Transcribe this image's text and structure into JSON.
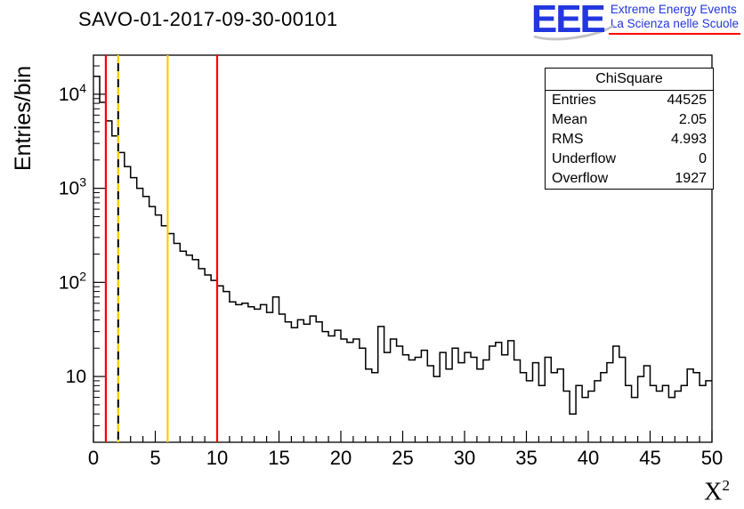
{
  "header": {
    "title": "SAVO-01-2017-09-30-00101"
  },
  "logo": {
    "acronym": "EEE",
    "line1": "Extreme Energy Events",
    "line2": "La Scienza nelle Scuole",
    "color": "#2236e0",
    "underline_color": "#ff0000"
  },
  "stats": {
    "title": "ChiSquare",
    "rows": [
      {
        "label": "Entries",
        "value": "44525"
      },
      {
        "label": "Mean",
        "value": "2.05"
      },
      {
        "label": "RMS",
        "value": "4.993"
      },
      {
        "label": "Underflow",
        "value": "0"
      },
      {
        "label": "Overflow",
        "value": "1927"
      }
    ]
  },
  "chart_data": {
    "type": "bar",
    "subtype": "histogram-step-logy",
    "title": "SAVO-01-2017-09-30-00101",
    "xlabel": "X",
    "xlabel_sup": "2",
    "ylabel": "Entries/bin",
    "xlim": [
      0,
      50
    ],
    "ylim": [
      2,
      26000
    ],
    "y_scale": "log",
    "grid": false,
    "legend": "none",
    "bin_start": 0,
    "bin_width": 0.5,
    "x_ticks": [
      0,
      5,
      10,
      15,
      20,
      25,
      30,
      35,
      40,
      45,
      50
    ],
    "y_tick_exponents": [
      1,
      2,
      3,
      4
    ],
    "line_color": "#000000",
    "values": [
      15500,
      8200,
      5200,
      3600,
      2400,
      1700,
      1300,
      1000,
      820,
      640,
      520,
      400,
      330,
      260,
      215,
      195,
      175,
      140,
      120,
      105,
      92,
      80,
      62,
      58,
      60,
      55,
      52,
      58,
      48,
      70,
      46,
      38,
      33,
      40,
      36,
      44,
      38,
      30,
      27,
      31,
      25,
      23,
      25,
      20,
      12,
      11,
      34,
      18,
      25,
      21,
      17,
      15,
      16,
      19,
      13,
      10,
      18,
      12,
      20,
      14,
      18,
      16,
      12,
      15,
      21,
      23,
      17,
      24,
      15,
      11,
      9,
      14,
      8,
      16,
      11,
      12,
      7,
      4,
      8,
      6,
      7,
      9,
      11,
      14,
      21,
      16,
      8,
      6,
      10,
      13,
      8,
      7,
      8,
      6,
      7,
      8,
      12,
      11,
      8,
      9
    ],
    "vlines": [
      {
        "x": 1,
        "color": "#ff0000",
        "style": "solid"
      },
      {
        "x": 2,
        "color": "#ffcc00",
        "style": "dashed-black"
      },
      {
        "x": 6,
        "color": "#ffcc00",
        "style": "solid"
      },
      {
        "x": 10,
        "color": "#ff0000",
        "style": "solid"
      }
    ]
  }
}
